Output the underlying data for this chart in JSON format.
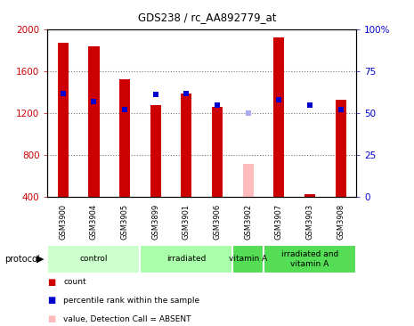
{
  "title": "GDS238 / rc_AA892779_at",
  "samples": [
    "GSM3900",
    "GSM3904",
    "GSM3905",
    "GSM3899",
    "GSM3901",
    "GSM3906",
    "GSM3902",
    "GSM3907",
    "GSM3903",
    "GSM3908"
  ],
  "count_values": [
    1870,
    1840,
    1520,
    1280,
    1390,
    1260,
    null,
    1920,
    430,
    1330
  ],
  "count_absent": [
    null,
    null,
    null,
    null,
    null,
    null,
    720,
    null,
    null,
    null
  ],
  "rank_values": [
    62,
    57,
    52,
    61,
    62,
    55,
    null,
    58,
    55,
    52
  ],
  "rank_absent": [
    null,
    null,
    null,
    null,
    null,
    null,
    50,
    null,
    null,
    null
  ],
  "ylim_left": [
    400,
    2000
  ],
  "ylim_right": [
    0,
    100
  ],
  "yticks_left": [
    400,
    800,
    1200,
    1600,
    2000
  ],
  "yticks_right": [
    0,
    25,
    50,
    75,
    100
  ],
  "protocol_groups": [
    {
      "label": "control",
      "start": 0,
      "end": 2,
      "color": "#ccffcc"
    },
    {
      "label": "irradiated",
      "start": 3,
      "end": 5,
      "color": "#aaffaa"
    },
    {
      "label": "vitamin A",
      "start": 6,
      "end": 6,
      "color": "#55dd55"
    },
    {
      "label": "irradiated and\nvitamin A",
      "start": 7,
      "end": 9,
      "color": "#55dd55"
    }
  ],
  "bar_width": 0.35,
  "count_color": "#cc0000",
  "count_absent_color": "#ffbbbb",
  "rank_color": "#0000cc",
  "rank_absent_color": "#aaaaee",
  "bg_color": "#ffffff",
  "plot_bg": "#ffffff",
  "grid_color": "#777777",
  "tick_label_bg": "#cccccc",
  "left_tick_color": "#cc0000",
  "right_tick_color": "#0000cc",
  "border_color": "#000000"
}
